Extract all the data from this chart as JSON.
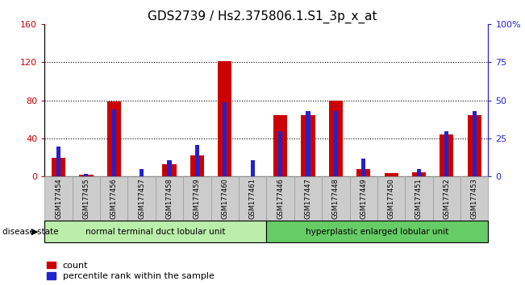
{
  "title": "GDS2739 / Hs2.375806.1.S1_3p_x_at",
  "samples": [
    "GSM177454",
    "GSM177455",
    "GSM177456",
    "GSM177457",
    "GSM177458",
    "GSM177459",
    "GSM177460",
    "GSM177461",
    "GSM177446",
    "GSM177447",
    "GSM177448",
    "GSM177449",
    "GSM177450",
    "GSM177451",
    "GSM177452",
    "GSM177453"
  ],
  "count_values": [
    20,
    2,
    79,
    0,
    13,
    22,
    121,
    0,
    65,
    65,
    80,
    8,
    4,
    5,
    44,
    65
  ],
  "percentile_values": [
    20,
    2,
    44,
    5,
    11,
    21,
    49,
    11,
    30,
    43,
    43,
    12,
    0,
    5,
    30,
    43
  ],
  "group1_label": "normal terminal duct lobular unit",
  "group2_label": "hyperplastic enlarged lobular unit",
  "n_group1": 8,
  "n_group2": 8,
  "disease_state_label": "disease state",
  "count_color": "#cc0000",
  "percentile_color": "#2222cc",
  "group1_color": "#bbeeaa",
  "group2_color": "#66cc66",
  "ylim_left": [
    0,
    160
  ],
  "ylim_right": [
    0,
    100
  ],
  "yticks_left": [
    0,
    40,
    80,
    120,
    160
  ],
  "yticks_right": [
    0,
    25,
    50,
    75,
    100
  ],
  "ytick_labels_right": [
    "0",
    "25",
    "50",
    "75",
    "100%"
  ],
  "red_bar_width": 0.5,
  "blue_bar_width": 0.15,
  "background_color": "#ffffff",
  "tick_label_color_left": "#cc0000",
  "tick_label_color_right": "#2222cc",
  "title_fontsize": 11,
  "axis_fontsize": 8,
  "legend_fontsize": 8,
  "sample_box_color": "#cccccc",
  "sample_box_edge": "#999999"
}
